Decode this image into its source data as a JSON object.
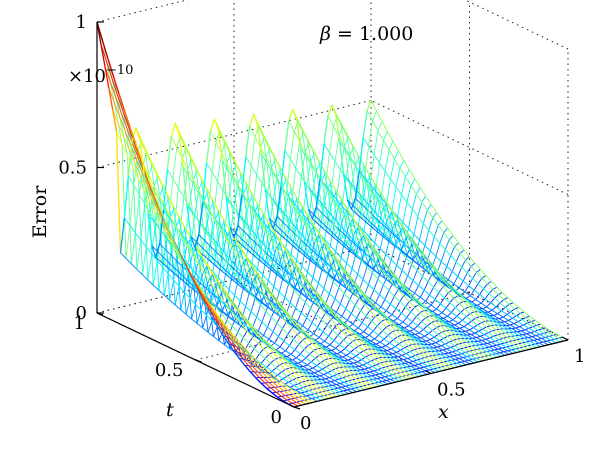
{
  "chart_data": {
    "type": "surface-mesh",
    "title": "β = 1.000",
    "title_symbol": "β",
    "title_value": "= 1.000",
    "exponent": "×10",
    "exponent_power": "−10",
    "zlabel": "Error",
    "xlabel": "x",
    "ylabel": "t",
    "xlim": [
      0,
      1
    ],
    "ylim": [
      0,
      1
    ],
    "zlim": [
      0,
      1
    ],
    "grid": true,
    "colormap": "jet",
    "z_ticks": [
      {
        "value": 0,
        "label": "0"
      },
      {
        "value": 0.5,
        "label": "0.5"
      },
      {
        "value": 1,
        "label": "1"
      }
    ],
    "x_ticks": [
      {
        "value": 0,
        "label": "0"
      },
      {
        "value": 0.5,
        "label": "0.5"
      },
      {
        "value": 1,
        "label": "1"
      }
    ],
    "t_ticks": [
      {
        "value": 0,
        "label": "0"
      },
      {
        "value": 0.5,
        "label": "0.5"
      },
      {
        "value": 1,
        "label": "1"
      }
    ],
    "error_at_x0": [
      {
        "t": 0.0,
        "error": 0.0
      },
      {
        "t": 0.25,
        "error": 0.06
      },
      {
        "t": 0.5,
        "error": 0.22
      },
      {
        "t": 0.75,
        "error": 0.5
      },
      {
        "t": 1.0,
        "error": 1.0
      }
    ],
    "error_ridges_at_t1": [
      {
        "x": 0.0,
        "error": 1.0
      },
      {
        "x": 0.14,
        "error": 0.54
      },
      {
        "x": 0.29,
        "error": 0.5
      },
      {
        "x": 0.43,
        "error": 0.45
      },
      {
        "x": 0.57,
        "error": 0.4
      },
      {
        "x": 0.71,
        "error": 0.34
      },
      {
        "x": 0.86,
        "error": 0.26
      },
      {
        "x": 1.0,
        "error": 0.2
      }
    ],
    "surface_model": "error(x,t) = t^2 * (0.23 + 0.77 * cos(7*pi*x)^2 * (1 - 0.2*x)) * (1 + 0.15*t)/1.15, x-weighted toward edge: full at x=0"
  }
}
